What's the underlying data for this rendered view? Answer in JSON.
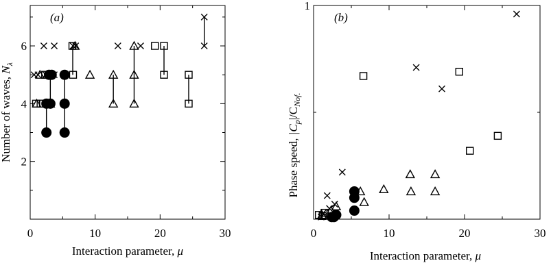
{
  "chart_data": [
    {
      "panel": "(a)",
      "type": "scatter",
      "xlabel_text": "Interaction parameter, ",
      "xlabel_sym": "μ",
      "ylabel_text": "Number of waves, ",
      "ylabel_sym": "N",
      "ylabel_sub": "λ",
      "xlim": [
        0,
        30
      ],
      "ylim": [
        0,
        7.4
      ],
      "xticks": [
        0,
        10,
        20,
        30
      ],
      "yticks": [
        2,
        4,
        6
      ],
      "xticks_minor": [
        5,
        15,
        25
      ],
      "yticks_minor": [
        1,
        3,
        5,
        7
      ],
      "series": [
        {
          "marker": "cross",
          "points": [
            [
              0.6,
              5
            ],
            [
              1.2,
              5
            ],
            [
              2.1,
              6
            ],
            [
              2.4,
              5
            ],
            [
              3.7,
              6
            ],
            [
              3.7,
              5
            ],
            [
              6.6,
              6
            ],
            [
              7.0,
              6
            ],
            [
              13.5,
              6
            ],
            [
              17.0,
              6
            ],
            [
              26.8,
              7
            ],
            [
              26.8,
              6
            ]
          ],
          "segments": [
            [
              [
                26.8,
                6
              ],
              [
                26.8,
                7
              ]
            ]
          ]
        },
        {
          "marker": "square",
          "points": [
            [
              0.9,
              4
            ],
            [
              1.6,
              4
            ],
            [
              2.0,
              4
            ],
            [
              2.3,
              5
            ],
            [
              6.5,
              6
            ],
            [
              6.6,
              5
            ],
            [
              19.2,
              6
            ],
            [
              20.6,
              6
            ],
            [
              20.6,
              5
            ],
            [
              24.4,
              5
            ],
            [
              24.4,
              4
            ]
          ],
          "segments": [
            [
              [
                20.6,
                5
              ],
              [
                20.6,
                6
              ]
            ],
            [
              [
                24.4,
                4
              ],
              [
                24.4,
                5
              ]
            ],
            [
              [
                6.55,
                5
              ],
              [
                6.55,
                6
              ]
            ]
          ]
        },
        {
          "marker": "triangle",
          "points": [
            [
              1.0,
              4
            ],
            [
              1.5,
              5
            ],
            [
              2.5,
              4
            ],
            [
              3.1,
              4
            ],
            [
              6.9,
              6
            ],
            [
              9.2,
              5
            ],
            [
              12.8,
              5
            ],
            [
              12.8,
              4
            ],
            [
              16.0,
              6
            ],
            [
              16.0,
              5
            ],
            [
              16.0,
              4
            ]
          ],
          "segments": [
            [
              [
                12.8,
                4
              ],
              [
                12.8,
                5
              ]
            ],
            [
              [
                16.0,
                4
              ],
              [
                16.0,
                6
              ]
            ]
          ]
        },
        {
          "marker": "circle-filled",
          "points": [
            [
              2.5,
              4
            ],
            [
              2.5,
              3
            ],
            [
              2.9,
              5
            ],
            [
              3.1,
              4
            ],
            [
              3.3,
              5
            ],
            [
              5.3,
              5
            ],
            [
              5.3,
              4
            ],
            [
              5.3,
              3
            ]
          ],
          "segments": [
            [
              [
                2.5,
                3
              ],
              [
                2.5,
                4
              ]
            ],
            [
              [
                3.1,
                4
              ],
              [
                3.1,
                5
              ]
            ],
            [
              [
                5.3,
                3
              ],
              [
                5.3,
                5
              ]
            ]
          ]
        }
      ]
    },
    {
      "panel": "(b)",
      "type": "scatter",
      "xlabel_text": "Interaction parameter, ",
      "xlabel_sym": "μ",
      "ylabel_text": "Phase speed, ",
      "ylabel_sym": "|C",
      "ylabel_sub": "p",
      "ylabel_tail": "|/C",
      "ylabel_tail_sub": "Nof.",
      "xlim": [
        0,
        30
      ],
      "ylim": [
        0,
        1
      ],
      "xticks": [
        0,
        10,
        20,
        30
      ],
      "yticks": [
        1
      ],
      "xticks_minor": [
        5,
        15,
        25
      ],
      "yticks_minor": [
        0.5
      ],
      "series": [
        {
          "marker": "cross",
          "points": [
            [
              1.0,
              0.01
            ],
            [
              1.3,
              0.03
            ],
            [
              1.8,
              0.11
            ],
            [
              2.1,
              0.05
            ],
            [
              2.8,
              0.07
            ],
            [
              3.8,
              0.22
            ],
            [
              13.6,
              0.71
            ],
            [
              17.0,
              0.61
            ],
            [
              26.9,
              0.96
            ]
          ]
        },
        {
          "marker": "square",
          "points": [
            [
              0.7,
              0.02
            ],
            [
              1.2,
              0.015
            ],
            [
              1.5,
              0.03
            ],
            [
              6.6,
              0.67
            ],
            [
              19.3,
              0.69
            ],
            [
              20.7,
              0.32
            ],
            [
              24.4,
              0.39
            ]
          ]
        },
        {
          "marker": "triangle",
          "points": [
            [
              1.1,
              0.02
            ],
            [
              2.3,
              0.04
            ],
            [
              3.0,
              0.06
            ],
            [
              6.2,
              0.13
            ],
            [
              6.7,
              0.08
            ],
            [
              9.3,
              0.14
            ],
            [
              12.8,
              0.21
            ],
            [
              12.9,
              0.13
            ],
            [
              16.1,
              0.21
            ],
            [
              16.1,
              0.13
            ]
          ]
        },
        {
          "marker": "circle-filled",
          "points": [
            [
              2.4,
              0.01
            ],
            [
              2.7,
              0.01
            ],
            [
              3.0,
              0.02
            ],
            [
              5.4,
              0.04
            ],
            [
              5.4,
              0.13
            ],
            [
              5.4,
              0.1
            ]
          ]
        }
      ]
    }
  ]
}
